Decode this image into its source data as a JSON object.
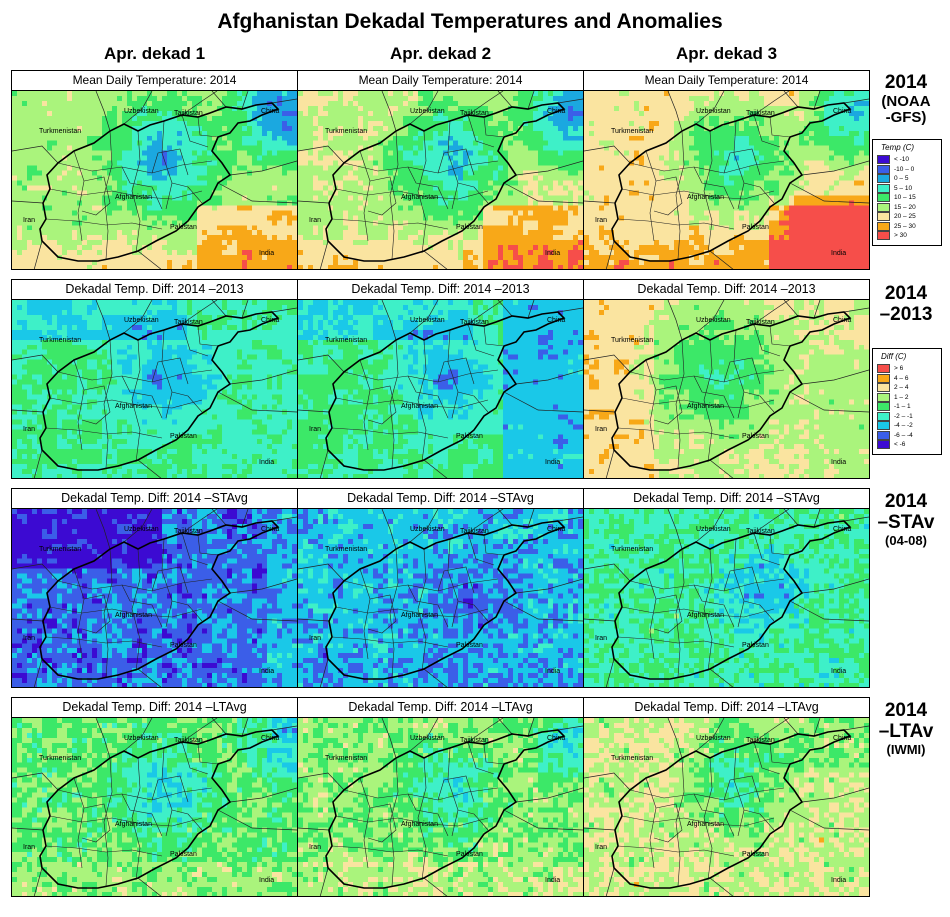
{
  "title": "Afghanistan Dekadal Temperatures and Anomalies",
  "columns": [
    "Apr. dekad 1",
    "Apr. dekad 2",
    "Apr. dekad 3"
  ],
  "rows": [
    {
      "title": "Mean Daily Temperature: 2014",
      "label_lines": [
        "2014",
        "(NOAA",
        "-GFS)"
      ]
    },
    {
      "title": "Dekadal Temp. Diff:  2014 –2013",
      "label_lines": [
        "2014",
        "–2013"
      ]
    },
    {
      "title": "Dekadal Temp. Diff:  2014 –STAvg",
      "label_lines": [
        "2014",
        "–STAv",
        "(04-08)"
      ]
    },
    {
      "title": "Dekadal Temp. Diff:  2014 –LTAvg",
      "label_lines": [
        "2014",
        "–LTAv",
        "(IWMI)"
      ]
    }
  ],
  "map_labels": {
    "uzbekistan": "Uzbekistan",
    "tajikistan": "Tajikistan",
    "china": "China",
    "turkmenistan": "Turkmenistan",
    "afghanistan": "Afghanistan",
    "iran": "Iran",
    "pakistan": "Pakistan",
    "india": "India"
  },
  "legend_temp": {
    "title": "Temp (C)",
    "items": [
      {
        "label": "< -10",
        "color": "#3c0ad2"
      },
      {
        "label": "-10 – 0",
        "color": "#3b5ee8"
      },
      {
        "label": "0 – 5",
        "color": "#1ba8e0"
      },
      {
        "label": "5 – 10",
        "color": "#3ef0c8"
      },
      {
        "label": "10 – 15",
        "color": "#3ce868"
      },
      {
        "label": "15 – 20",
        "color": "#aaf47c"
      },
      {
        "label": "20 – 25",
        "color": "#fae4a0"
      },
      {
        "label": "25 – 30",
        "color": "#f8a818"
      },
      {
        "label": "> 30",
        "color": "#f64e4a"
      }
    ]
  },
  "legend_diff": {
    "title": "Diff (C)",
    "items": [
      {
        "label": "> 6",
        "color": "#f64e4a"
      },
      {
        "label": "4 – 6",
        "color": "#f8a818"
      },
      {
        "label": "2 – 4",
        "color": "#fae4a0"
      },
      {
        "label": "1 – 2",
        "color": "#aaf47c"
      },
      {
        "label": "-1 – 1",
        "color": "#3ce868"
      },
      {
        "label": "-2 – -1",
        "color": "#3ef0c8"
      },
      {
        "label": "-4 – -2",
        "color": "#1ac8e8"
      },
      {
        "label": "-6 – -4",
        "color": "#3b5ee8"
      },
      {
        "label": "< -6",
        "color": "#3c0ad2"
      }
    ]
  }
}
